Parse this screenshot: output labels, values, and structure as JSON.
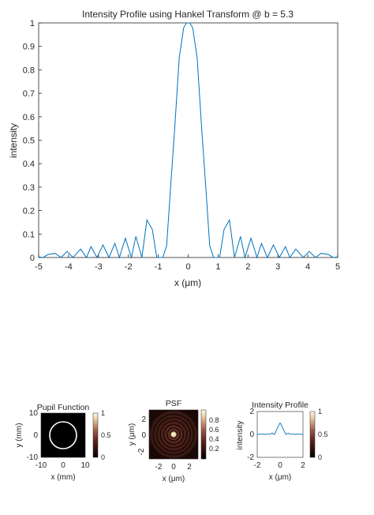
{
  "colors": {
    "line": "#0072bd",
    "axis": "#262626",
    "background": "#ffffff",
    "heat_low": "#000000",
    "heat_mid": "#9a4a36",
    "heat_high": "#fff8d8"
  },
  "chart_data": [
    {
      "type": "line",
      "title": "Intensity Profile using Hankel Transform @ b = 5.3",
      "xlabel": "x (μm)",
      "ylabel": "intensity",
      "xlim": [
        -5,
        5
      ],
      "ylim": [
        0,
        1
      ],
      "grid": false,
      "xticks": [
        "-5",
        "-4",
        "-3",
        "-2",
        "-1",
        "0",
        "1",
        "2",
        "3",
        "4",
        "5"
      ],
      "yticks": [
        "0",
        "0.1",
        "0.2",
        "0.3",
        "0.4",
        "0.5",
        "0.6",
        "0.7",
        "0.8",
        "0.9",
        "1"
      ],
      "series": [
        {
          "description_of_shape": "Airy pattern: central peak at x=0, side lobes decreasing",
          "x": [
            -5,
            -4.85,
            -4.7,
            -4.45,
            -4.25,
            -4.05,
            -3.85,
            -3.6,
            -3.4,
            -3.25,
            -3.05,
            -2.85,
            -2.65,
            -2.45,
            -2.3,
            -2.1,
            -1.9,
            -1.75,
            -1.55,
            -1.38,
            -1.2,
            -1.05,
            -0.85,
            -0.72,
            -0.6,
            -0.45,
            -0.3,
            -0.15,
            -0.05,
            0,
            0.05,
            0.15,
            0.3,
            0.45,
            0.6,
            0.72,
            0.85,
            1.05,
            1.2,
            1.38,
            1.55,
            1.75,
            1.9,
            2.1,
            2.3,
            2.45,
            2.65,
            2.85,
            3.05,
            3.25,
            3.4,
            3.6,
            3.85,
            4.05,
            4.25,
            4.45,
            4.7,
            4.85,
            5
          ],
          "y": [
            0.002,
            0.0,
            0.012,
            0.018,
            0.0,
            0.026,
            0.0,
            0.036,
            0.0,
            0.046,
            0.0,
            0.054,
            0.0,
            0.06,
            0.0,
            0.082,
            0.0,
            0.09,
            0.0,
            0.16,
            0.12,
            0.0,
            0.0,
            0.05,
            0.28,
            0.55,
            0.85,
            0.98,
            1.0,
            1.0,
            1.0,
            0.98,
            0.85,
            0.55,
            0.28,
            0.05,
            0.0,
            0.0,
            0.12,
            0.16,
            0.0,
            0.09,
            0.0,
            0.082,
            0.0,
            0.06,
            0.0,
            0.054,
            0.0,
            0.046,
            0.0,
            0.036,
            0.0,
            0.026,
            0.0,
            0.018,
            0.012,
            0.0,
            0.002
          ]
        }
      ]
    },
    {
      "type": "heatmap",
      "title": "Pupil Function",
      "xlabel": "x (mm)",
      "ylabel": "y (mm)",
      "xlim": [
        -10,
        10
      ],
      "ylim": [
        -10,
        10
      ],
      "xticks": [
        "-10",
        "0",
        "10"
      ],
      "yticks": [
        "10",
        "0",
        "-10"
      ],
      "colorbar_ticks": [
        "1",
        "0.5",
        "0"
      ],
      "pattern": "ring"
    },
    {
      "type": "heatmap",
      "title": "PSF",
      "xlabel": "x (μm)",
      "ylabel": "y (μm)",
      "xlim": [
        -3,
        3
      ],
      "ylim": [
        -3,
        3
      ],
      "xticks": [
        "-2",
        "0",
        "2"
      ],
      "yticks": [
        "2",
        "0",
        "-2"
      ],
      "colorbar_ticks": [
        "0.8",
        "0.6",
        "0.4",
        "0.2"
      ],
      "pattern": "airy"
    },
    {
      "type": "line",
      "title": "Intensity Profile",
      "xlabel": "x (μm)",
      "ylabel": "intensity",
      "xlim": [
        -2,
        2
      ],
      "ylim": [
        -2,
        2
      ],
      "xticks": [
        "-2",
        "0",
        "2"
      ],
      "yticks": [
        "2",
        "0",
        "-2"
      ],
      "colorbar_ticks": [
        "1",
        "0.5",
        "0"
      ],
      "series": [
        {
          "x": [
            -2,
            -1.7,
            -1.5,
            -1.3,
            -1.1,
            -0.9,
            -0.7,
            -0.5,
            -0.3,
            -0.1,
            0,
            0.1,
            0.3,
            0.5,
            0.7,
            0.9,
            1.1,
            1.3,
            1.5,
            1.7,
            2
          ],
          "y": [
            0.0,
            0.02,
            0.03,
            0.0,
            0.05,
            0.0,
            0.12,
            0.0,
            0.4,
            0.85,
            1.0,
            0.85,
            0.4,
            0.0,
            0.12,
            0.0,
            0.05,
            0.0,
            0.03,
            0.02,
            0.0
          ]
        }
      ]
    }
  ]
}
